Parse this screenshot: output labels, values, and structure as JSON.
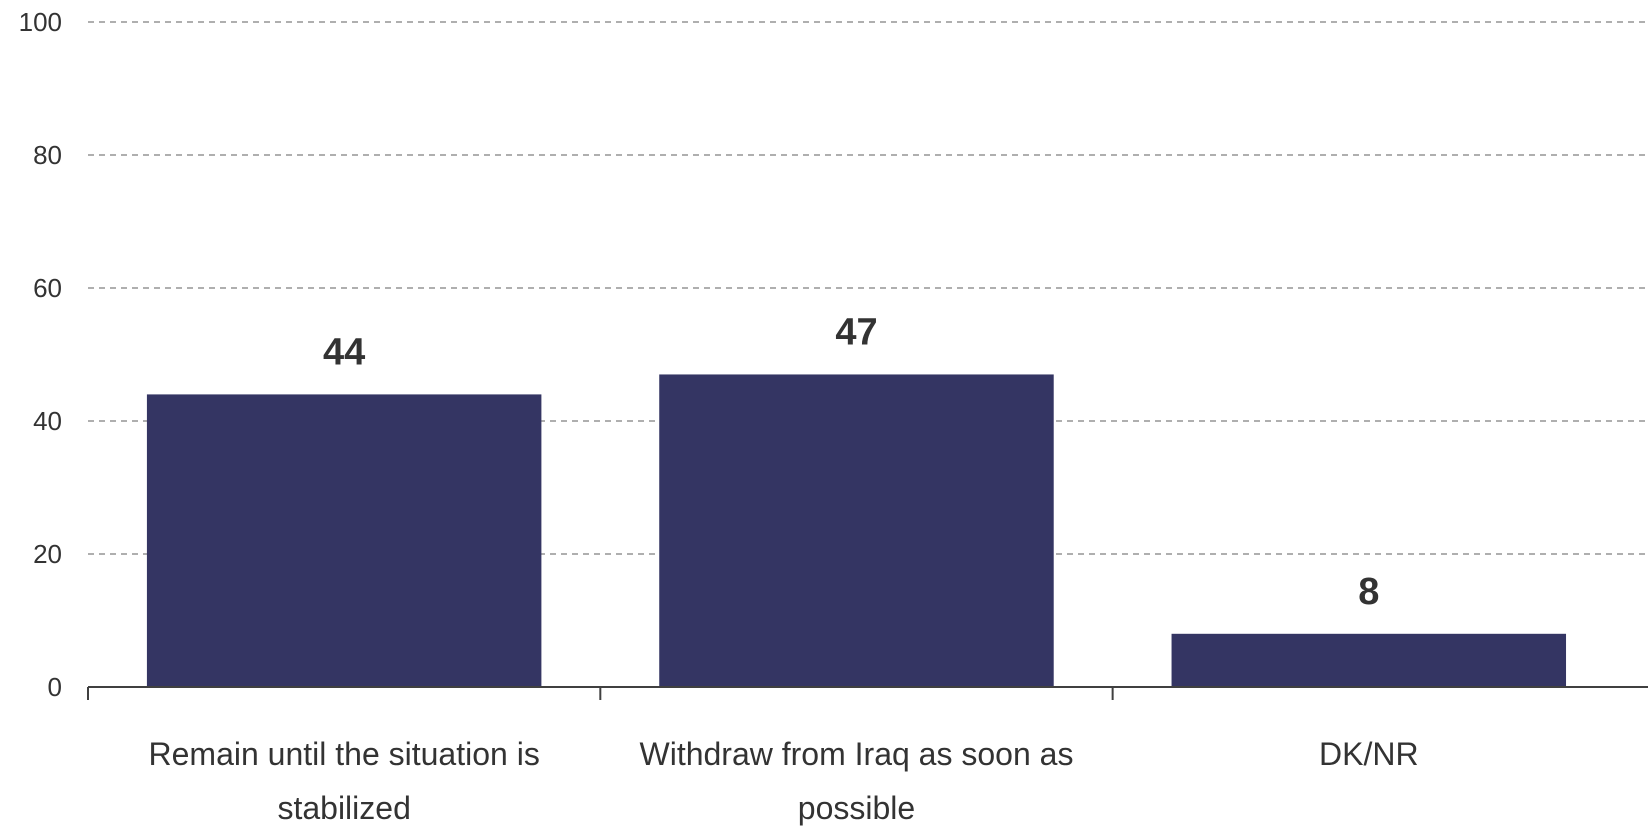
{
  "chart_data": {
    "type": "bar",
    "categories": [
      [
        "Remain until the situation is",
        "stabilized"
      ],
      [
        "Withdraw from Iraq as soon as",
        "possible"
      ],
      [
        "DK/NR"
      ]
    ],
    "values": [
      44,
      47,
      8
    ],
    "data_labels": [
      "44",
      "47",
      "8"
    ],
    "ylim": [
      0,
      100
    ],
    "yticks": [
      0,
      20,
      40,
      60,
      80,
      100
    ],
    "grid": true,
    "bar_color": "#343563",
    "title": "",
    "xlabel": "",
    "ylabel": ""
  }
}
